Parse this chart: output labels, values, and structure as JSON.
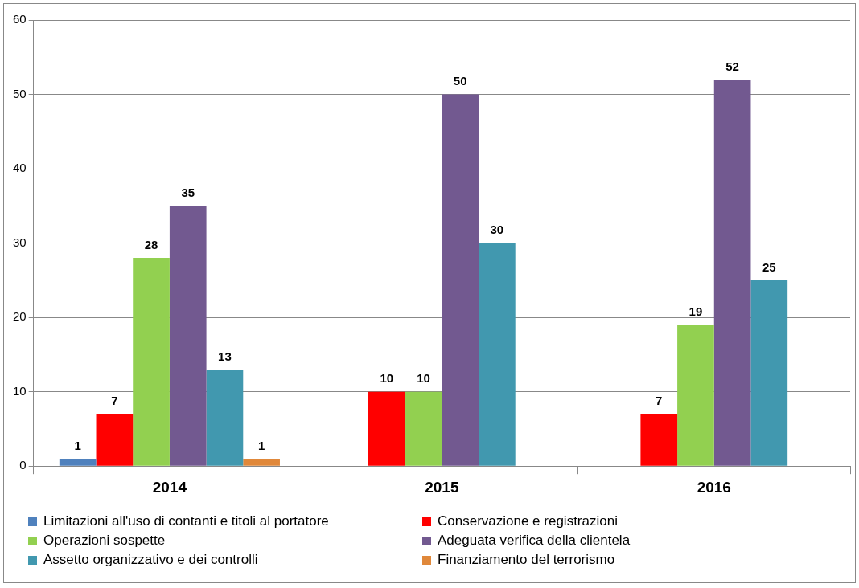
{
  "chart_data": {
    "type": "bar",
    "categories": [
      "2014",
      "2015",
      "2016"
    ],
    "series": [
      {
        "name": "Limitazioni all'uso di contanti e titoli al portatore",
        "color": "#4f81bd",
        "values": [
          1,
          null,
          null
        ]
      },
      {
        "name": "Conservazione e registrazioni",
        "color": "#ff0000",
        "values": [
          7,
          10,
          7
        ]
      },
      {
        "name": "Operazioni sospette",
        "color": "#92d050",
        "values": [
          28,
          10,
          19
        ]
      },
      {
        "name": "Adeguata verifica della clientela",
        "color": "#725990",
        "values": [
          35,
          50,
          52
        ]
      },
      {
        "name": "Assetto organizzativo e dei controlli",
        "color": "#4198af",
        "values": [
          13,
          30,
          25
        ]
      },
      {
        "name": "Finanziamento del terrorismo",
        "color": "#e0883a",
        "values": [
          1,
          null,
          null
        ]
      }
    ],
    "ylim": [
      0,
      60
    ],
    "yticks": [
      0,
      10,
      20,
      30,
      40,
      50,
      60
    ],
    "grid": "y",
    "legend": "bottom",
    "data_labels": true
  }
}
